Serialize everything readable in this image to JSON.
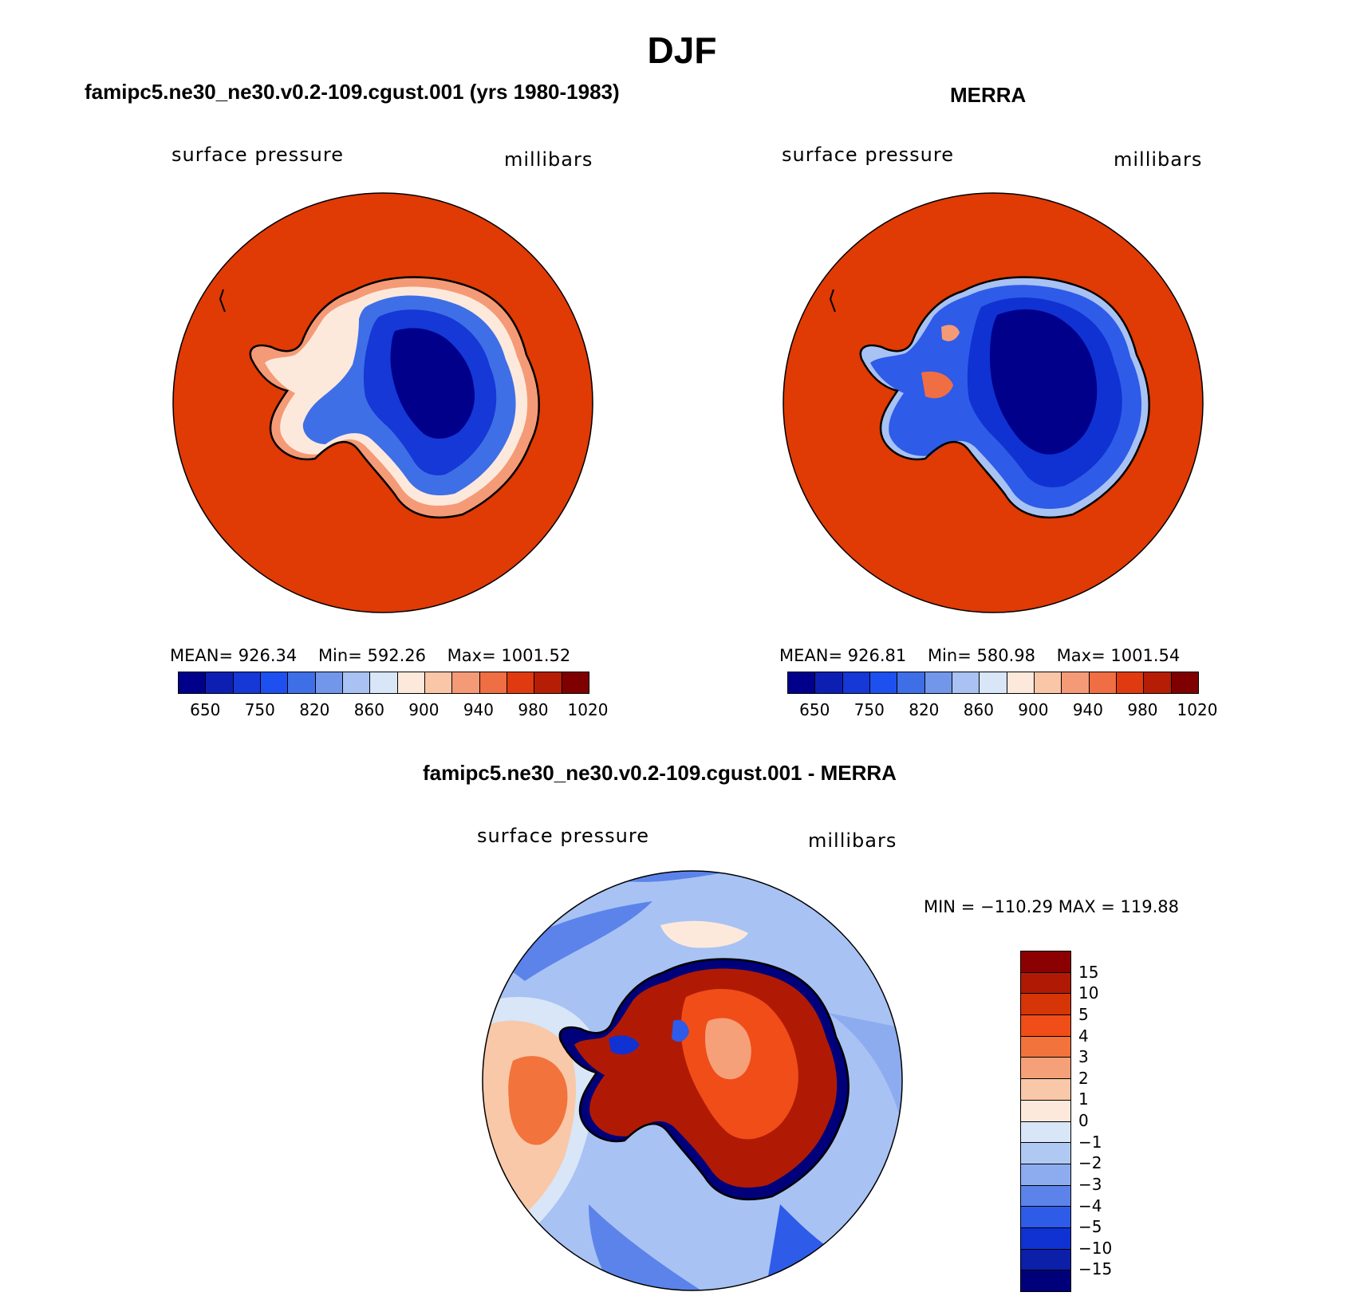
{
  "figure": {
    "title": "DJF"
  },
  "panels": [
    {
      "title": "famipc5.ne30_ne30.v0.2-109.cgust.001 (yrs 1980-1983)",
      "left_label": "surface pressure",
      "right_label": "millibars",
      "stats": {
        "mean_label": "MEAN=",
        "mean": "926.34",
        "min_label": "Min=",
        "min": "592.26",
        "max_label": "Max=",
        "max": "1001.52"
      }
    },
    {
      "title": "MERRA",
      "left_label": "surface pressure",
      "right_label": "millibars",
      "stats": {
        "mean_label": "MEAN=",
        "mean": "926.81",
        "min_label": "Min=",
        "min": "580.98",
        "max_label": "Max=",
        "max": "1001.54"
      }
    },
    {
      "title": "famipc5.ne30_ne30.v0.2-109.cgust.001 - MERRA",
      "left_label": "surface pressure",
      "right_label": "millibars",
      "stats": {
        "text": "MIN = −110.29 MAX = 119.88"
      }
    }
  ],
  "pressure_colorbar": {
    "colors": [
      "#00008b",
      "#0d1fb3",
      "#1538d6",
      "#1e50f0",
      "#3f6fe6",
      "#7297ea",
      "#a8c2f4",
      "#d8e6f8",
      "#fde9dc",
      "#f9c6a8",
      "#f59a76",
      "#f06e43",
      "#e03a10",
      "#b51d05",
      "#7f0000"
    ],
    "labels": [
      "650",
      "750",
      "820",
      "860",
      "900",
      "940",
      "980",
      "1020"
    ]
  },
  "diff_colorbar": {
    "colors": [
      "#8b0000",
      "#b01a05",
      "#d63508",
      "#f04d18",
      "#f2733c",
      "#f6a07a",
      "#f9c8a8",
      "#fde9dc",
      "#d8e6f8",
      "#b0c9f2",
      "#8dacef",
      "#5b83ea",
      "#2e5be8",
      "#1032d2",
      "#0b1fa8",
      "#00007a"
    ],
    "labels": [
      "15",
      "10",
      "5",
      "4",
      "3",
      "2",
      "1",
      "0",
      "−1",
      "−2",
      "−3",
      "−4",
      "−5",
      "−10",
      "−15"
    ]
  },
  "map_colors": {
    "ocean": "#e03a05",
    "coast": "#000000",
    "diff_ocean_main": "#a8c2f4"
  }
}
